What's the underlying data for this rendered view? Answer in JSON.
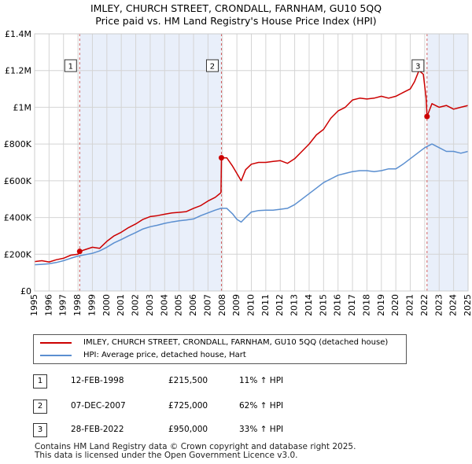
{
  "title_line1": "IMLEY, CHURCH STREET, CRONDALL, FARNHAM, GU10 5QQ",
  "title_line2": "Price paid vs. HM Land Registry's House Price Index (HPI)",
  "chart_data": {
    "type": "line",
    "title": "IMLEY, CHURCH STREET, CRONDALL, FARNHAM, GU10 5QQ — Price paid vs. HM Land Registry's House Price Index (HPI)",
    "xlabel": "",
    "ylabel": "",
    "xlim": [
      1995,
      2025
    ],
    "ylim": [
      0,
      1400000
    ],
    "y_ticks": [
      0,
      200000,
      400000,
      600000,
      800000,
      1000000,
      1200000,
      1400000
    ],
    "y_tick_labels": [
      "£0",
      "£200K",
      "£400K",
      "£600K",
      "£800K",
      "£1M",
      "£1.2M",
      "£1.4M"
    ],
    "x_ticks": [
      1995,
      1996,
      1997,
      1998,
      1999,
      2000,
      2001,
      2002,
      2003,
      2004,
      2005,
      2006,
      2007,
      2008,
      2009,
      2010,
      2011,
      2012,
      2013,
      2014,
      2015,
      2016,
      2017,
      2018,
      2019,
      2020,
      2021,
      2022,
      2023,
      2024,
      2025
    ],
    "x_tick_labels": [
      "1995",
      "1996",
      "1997",
      "1998",
      "1999",
      "2000",
      "2001",
      "2002",
      "2003",
      "2004",
      "2005",
      "2006",
      "2007",
      "2008",
      "2009",
      "2010",
      "2011",
      "2012",
      "2013",
      "2014",
      "2015",
      "2016",
      "2017",
      "2018",
      "2019",
      "2020",
      "2021",
      "2022",
      "2023",
      "2024",
      "2025"
    ],
    "shaded_periods": [
      [
        1998.12,
        2007.93
      ],
      [
        2022.16,
        2025.0
      ]
    ],
    "series": [
      {
        "name": "IMLEY, CHURCH STREET, CRONDALL, FARNHAM, GU10 5QQ (detached house)",
        "color": "#cc0000",
        "x": [
          1995.0,
          1995.5,
          1996.0,
          1996.5,
          1997.0,
          1997.5,
          1998.0,
          1998.12,
          1998.5,
          1999.0,
          1999.5,
          2000.0,
          2000.5,
          2001.0,
          2001.5,
          2002.0,
          2002.5,
          2003.0,
          2003.5,
          2004.0,
          2004.5,
          2005.0,
          2005.5,
          2006.0,
          2006.5,
          2007.0,
          2007.5,
          2007.9,
          2007.93,
          2008.3,
          2008.7,
          2009.0,
          2009.3,
          2009.6,
          2010.0,
          2010.5,
          2011.0,
          2011.5,
          2012.0,
          2012.5,
          2013.0,
          2013.5,
          2014.0,
          2014.5,
          2015.0,
          2015.5,
          2016.0,
          2016.5,
          2017.0,
          2017.5,
          2018.0,
          2018.5,
          2019.0,
          2019.5,
          2020.0,
          2020.5,
          2021.0,
          2021.3,
          2021.6,
          2021.9,
          2022.1,
          2022.16,
          2022.5,
          2023.0,
          2023.5,
          2024.0,
          2024.5,
          2025.0
        ],
        "values": [
          160000,
          165000,
          158000,
          170000,
          178000,
          195000,
          200000,
          215500,
          225000,
          238000,
          232000,
          270000,
          300000,
          320000,
          345000,
          365000,
          390000,
          405000,
          410000,
          418000,
          425000,
          428000,
          432000,
          450000,
          465000,
          490000,
          510000,
          535000,
          725000,
          725000,
          680000,
          640000,
          600000,
          660000,
          690000,
          700000,
          700000,
          705000,
          710000,
          695000,
          720000,
          760000,
          800000,
          850000,
          880000,
          940000,
          980000,
          1000000,
          1040000,
          1050000,
          1045000,
          1050000,
          1060000,
          1050000,
          1060000,
          1080000,
          1100000,
          1140000,
          1200000,
          1180000,
          1050000,
          950000,
          1020000,
          1000000,
          1010000,
          990000,
          1000000,
          1010000
        ]
      },
      {
        "name": "HPI: Average price, detached house, Hart",
        "color": "#5b8fd0",
        "x": [
          1995.0,
          1995.5,
          1996.0,
          1996.5,
          1997.0,
          1997.5,
          1998.0,
          1998.5,
          1999.0,
          1999.5,
          2000.0,
          2000.5,
          2001.0,
          2001.5,
          2002.0,
          2002.5,
          2003.0,
          2003.5,
          2004.0,
          2004.5,
          2005.0,
          2005.5,
          2006.0,
          2006.5,
          2007.0,
          2007.5,
          2007.9,
          2008.3,
          2008.7,
          2009.0,
          2009.3,
          2009.6,
          2010.0,
          2010.5,
          2011.0,
          2011.5,
          2012.0,
          2012.5,
          2013.0,
          2013.5,
          2014.0,
          2014.5,
          2015.0,
          2015.5,
          2016.0,
          2016.5,
          2017.0,
          2017.5,
          2018.0,
          2018.5,
          2019.0,
          2019.5,
          2020.0,
          2020.5,
          2021.0,
          2021.5,
          2022.0,
          2022.5,
          2023.0,
          2023.5,
          2024.0,
          2024.5,
          2025.0
        ],
        "values": [
          143000,
          145000,
          148000,
          155000,
          165000,
          178000,
          190000,
          198000,
          205000,
          218000,
          238000,
          262000,
          280000,
          300000,
          318000,
          338000,
          350000,
          358000,
          368000,
          376000,
          382000,
          386000,
          392000,
          410000,
          425000,
          440000,
          450000,
          450000,
          420000,
          390000,
          375000,
          400000,
          430000,
          438000,
          440000,
          440000,
          445000,
          450000,
          470000,
          500000,
          530000,
          560000,
          590000,
          610000,
          630000,
          640000,
          650000,
          655000,
          655000,
          650000,
          655000,
          665000,
          665000,
          690000,
          720000,
          750000,
          780000,
          800000,
          780000,
          760000,
          760000,
          750000,
          760000
        ]
      }
    ],
    "annotations": [
      {
        "label": "1",
        "x": 1998.12
      },
      {
        "label": "2",
        "x": 2007.93
      },
      {
        "label": "3",
        "x": 2022.16
      }
    ],
    "sale_points": [
      {
        "x": 1998.12,
        "y": 215500
      },
      {
        "x": 2007.93,
        "y": 725000
      },
      {
        "x": 2022.16,
        "y": 950000
      }
    ]
  },
  "legend": {
    "property_label": "IMLEY, CHURCH STREET, CRONDALL, FARNHAM, GU10 5QQ (detached house)",
    "hpi_label": "HPI: Average price, detached house, Hart"
  },
  "transactions": [
    {
      "num": "1",
      "date": "12-FEB-1998",
      "price": "£215,500",
      "hpi": "11% ↑ HPI"
    },
    {
      "num": "2",
      "date": "07-DEC-2007",
      "price": "£725,000",
      "hpi": "62% ↑ HPI"
    },
    {
      "num": "3",
      "date": "28-FEB-2022",
      "price": "£950,000",
      "hpi": "33% ↑ HPI"
    }
  ],
  "footer_line1": "Contains HM Land Registry data © Crown copyright and database right 2025.",
  "footer_line2": "This data is licensed under the Open Government Licence v3.0."
}
